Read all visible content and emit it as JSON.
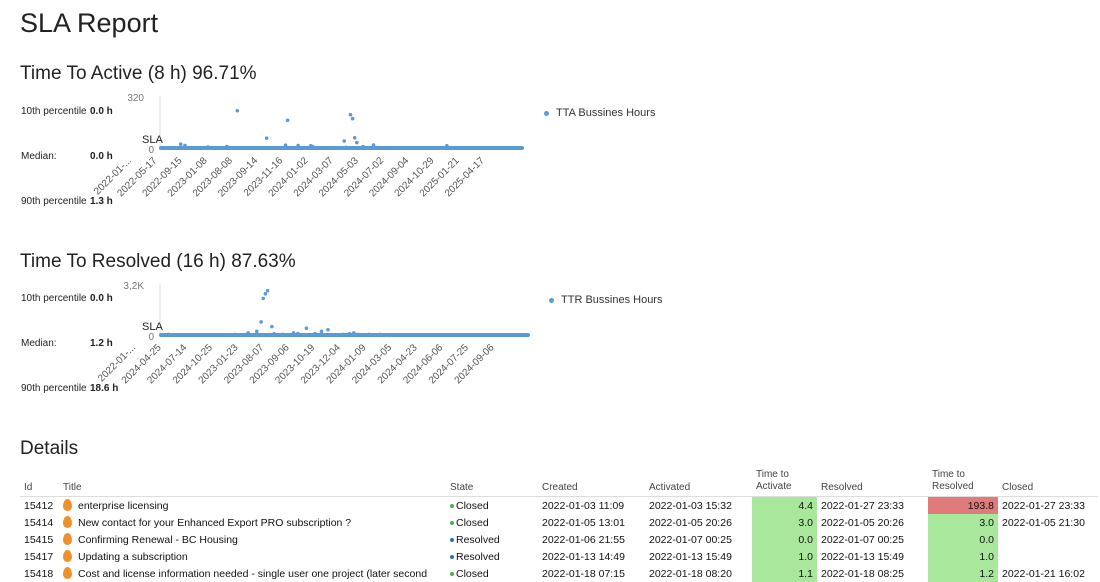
{
  "page_title": "SLA Report",
  "tta": {
    "title": "Time To Active (8 h) 96.71%",
    "p10_label": "10th percentile",
    "p10_value": "0.0 h",
    "median_label": "Median:",
    "median_value": "0.0 h",
    "p90_label": "90th percentile",
    "p90_value": "1.3 h",
    "legend": "TTA Bussines Hours"
  },
  "ttr": {
    "title": "Time To Resolved (16 h) 87.63%",
    "p10_label": "10th percentile",
    "p10_value": "0.0 h",
    "median_label": "Median:",
    "median_value": "1.2 h",
    "p90_label": "90th percentile",
    "p90_value": "18.6 h",
    "legend": "TTR Bussines Hours"
  },
  "chart_data": [
    {
      "type": "scatter",
      "title": "Time To Active (8 h) 96.71%",
      "y_tick_labels": [
        "320",
        "0"
      ],
      "ylim": [
        0,
        320
      ],
      "sla_label": "SLA",
      "x_tick_labels": [
        "2022-01-...",
        "2022-05-17",
        "2022-09-15",
        "2023-01-08",
        "2023-08-08",
        "2023-09-14",
        "2023-11-16",
        "2024-01-02",
        "2024-03-07",
        "2024-05-03",
        "2024-07-02",
        "2024-09-04",
        "2024-10-29",
        "2025-01-21",
        "2025-04-17"
      ],
      "legend": "TTA Bussines Hours",
      "series": [
        {
          "name": "TTA Bussines Hours",
          "color": "#5b9bd5",
          "outliers": [
            [
              0.05,
              6
            ],
            [
              0.06,
              5
            ],
            [
              0.08,
              30
            ],
            [
              0.1,
              22
            ],
            [
              0.13,
              8
            ],
            [
              0.2,
              5
            ],
            [
              0.21,
              12
            ],
            [
              0.29,
              5
            ],
            [
              0.3,
              15
            ],
            [
              0.31,
              10
            ],
            [
              0.35,
              240
            ],
            [
              0.36,
              5
            ],
            [
              0.37,
              5
            ],
            [
              0.46,
              5
            ],
            [
              0.49,
              68
            ],
            [
              0.53,
              6
            ],
            [
              0.58,
              24
            ],
            [
              0.59,
              180
            ],
            [
              0.64,
              22
            ],
            [
              0.66,
              5
            ],
            [
              0.7,
              20
            ],
            [
              0.71,
              15
            ],
            [
              0.83,
              8
            ],
            [
              0.86,
              50
            ],
            [
              0.87,
              10
            ],
            [
              0.89,
              215
            ],
            [
              0.9,
              190
            ],
            [
              0.91,
              70
            ],
            [
              0.92,
              40
            ],
            [
              0.95,
              15
            ],
            [
              1.0,
              25
            ],
            [
              1.04,
              5
            ],
            [
              1.06,
              5
            ],
            [
              1.2,
              5
            ],
            [
              1.25,
              5
            ],
            [
              1.35,
              20
            ],
            [
              1.37,
              5
            ],
            [
              1.45,
              5
            ],
            [
              1.52,
              6
            ]
          ]
        }
      ]
    },
    {
      "type": "scatter",
      "title": "Time To Resolved (16 h) 87.63%",
      "y_tick_labels": [
        "3,2K",
        "0"
      ],
      "ylim": [
        0,
        3200
      ],
      "sla_label": "SLA",
      "x_tick_labels": [
        "2022-01-...",
        "2024-04-25",
        "2024-07-14",
        "2024-10-25",
        "2023-01-23",
        "2023-08-07",
        "2023-09-06",
        "2023-10-19",
        "2023-12-04",
        "2024-01-09",
        "2024-03-05",
        "2024-04-23",
        "2024-06-06",
        "2024-07-25",
        "2024-09-06"
      ],
      "legend": "TTR Bussines Hours",
      "series": [
        {
          "name": "TTR Bussines Hours",
          "color": "#5b9bd5",
          "outliers": [
            [
              0.0,
              50
            ],
            [
              0.02,
              100
            ],
            [
              0.06,
              50
            ],
            [
              0.3,
              50
            ],
            [
              0.33,
              100
            ],
            [
              0.39,
              200
            ],
            [
              0.43,
              300
            ],
            [
              0.45,
              900
            ],
            [
              0.46,
              2400
            ],
            [
              0.47,
              2700
            ],
            [
              0.48,
              2900
            ],
            [
              0.5,
              600
            ],
            [
              0.51,
              150
            ],
            [
              0.52,
              50
            ],
            [
              0.55,
              100
            ],
            [
              0.58,
              60
            ],
            [
              0.6,
              200
            ],
            [
              0.62,
              150
            ],
            [
              0.66,
              500
            ],
            [
              0.7,
              150
            ],
            [
              0.73,
              300
            ],
            [
              0.76,
              400
            ],
            [
              0.78,
              50
            ],
            [
              0.8,
              40
            ],
            [
              0.83,
              100
            ],
            [
              0.86,
              150
            ],
            [
              0.88,
              200
            ],
            [
              0.9,
              100
            ],
            [
              0.95,
              100
            ],
            [
              0.99,
              50
            ],
            [
              1.0,
              100
            ]
          ]
        }
      ]
    }
  ],
  "details": {
    "title": "Details",
    "columns": [
      "Id",
      "Title",
      "State",
      "Created",
      "Activated",
      "Time to Activate",
      "Resolved",
      "Time to Resolved",
      "Closed"
    ],
    "rows": [
      {
        "id": "15412",
        "title": "enterprise licensing",
        "state": "Closed",
        "state_color": "#4caf50",
        "created": "2022-01-03 11:09",
        "activated": "2022-01-03 15:32",
        "tta": "4.4",
        "tta_status": "green",
        "resolved": "2022-01-27 23:33",
        "ttr": "193.8",
        "ttr_status": "red",
        "closed": "2022-01-27 23:33"
      },
      {
        "id": "15414",
        "title": "New contact for your Enhanced Export PRO subscription ?",
        "state": "Closed",
        "state_color": "#4caf50",
        "created": "2022-01-05 13:01",
        "activated": "2022-01-05 20:26",
        "tta": "3.0",
        "tta_status": "green",
        "resolved": "2022-01-05 20:26",
        "ttr": "3.0",
        "ttr_status": "green",
        "closed": "2022-01-05 21:30"
      },
      {
        "id": "15415",
        "title": "Confirming Renewal - BC Housing",
        "state": "Resolved",
        "state_color": "#2e6fbf",
        "created": "2022-01-06 21:55",
        "activated": "2022-01-07 00:25",
        "tta": "0.0",
        "tta_status": "green",
        "resolved": "2022-01-07 00:25",
        "ttr": "0.0",
        "ttr_status": "green",
        "closed": ""
      },
      {
        "id": "15417",
        "title": "Updating a subscription",
        "state": "Resolved",
        "state_color": "#2e6fbf",
        "created": "2022-01-13 14:49",
        "activated": "2022-01-13 15:49",
        "tta": "1.0",
        "tta_status": "green",
        "resolved": "2022-01-13 15:49",
        "ttr": "1.0",
        "ttr_status": "green",
        "closed": ""
      },
      {
        "id": "15418",
        "title": "Cost and license information needed - single user one project (later second",
        "state": "Closed",
        "state_color": "#4caf50",
        "created": "2022-01-18 07:15",
        "activated": "2022-01-18 08:20",
        "tta": "1.1",
        "tta_status": "green",
        "resolved": "2022-01-18 08:25",
        "ttr": "1.2",
        "ttr_status": "green",
        "closed": "2022-01-21 16:02"
      }
    ]
  }
}
